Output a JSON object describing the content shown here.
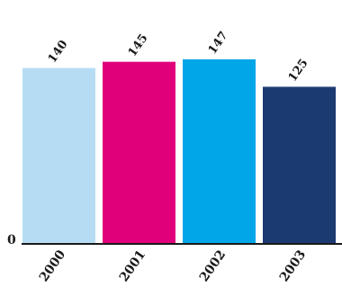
{
  "chart_data": {
    "type": "bar",
    "title": "",
    "xlabel": "",
    "ylabel": "",
    "categories": [
      "2000",
      "2001",
      "2002",
      "2003"
    ],
    "values": [
      140,
      145,
      147,
      125
    ],
    "colors": [
      "#b6dcf4",
      "#e0007a",
      "#00a6e8",
      "#1c3a72"
    ],
    "ylim": [
      0,
      175
    ],
    "y_zero_label": "0",
    "grid": false,
    "legend": "none",
    "baseline_color": "#1a1a1a"
  }
}
